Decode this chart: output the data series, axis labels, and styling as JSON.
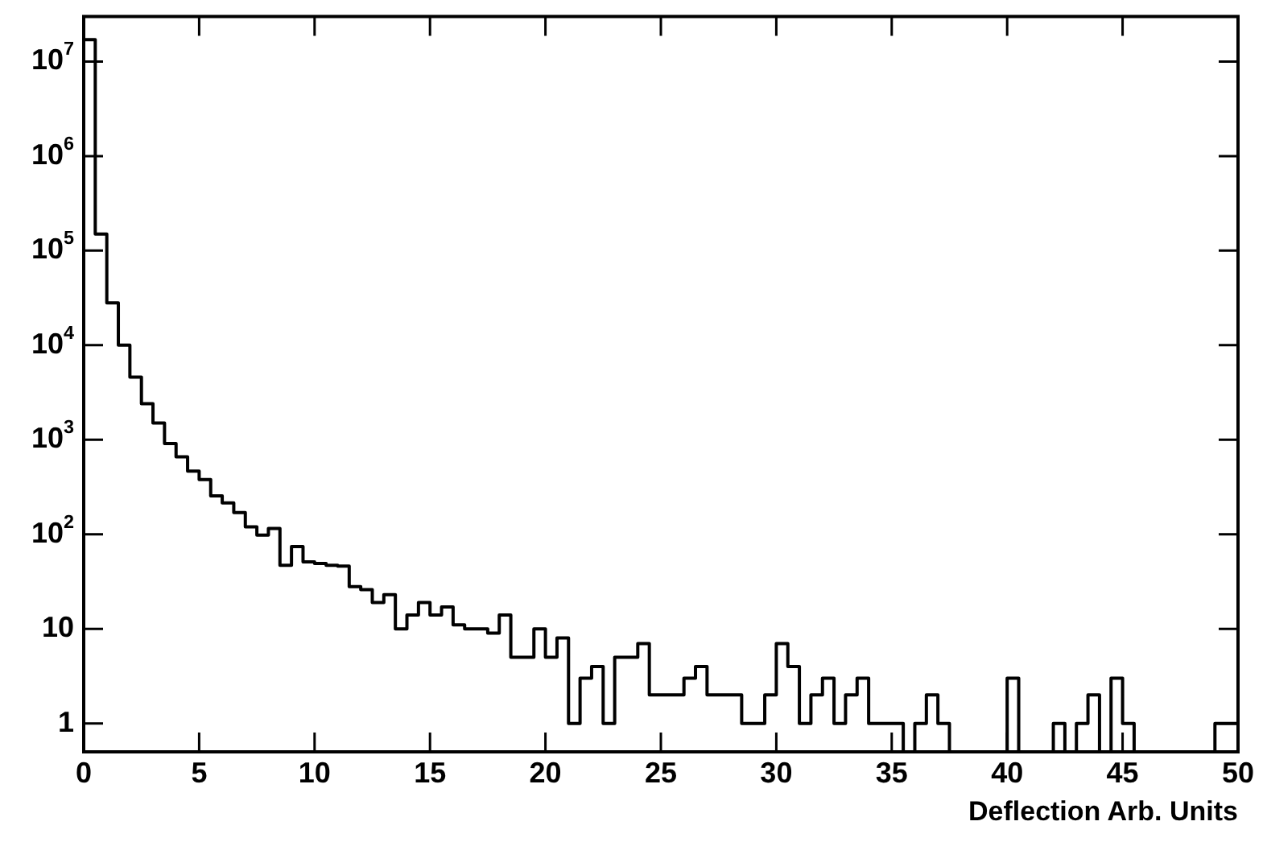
{
  "chart_data": {
    "type": "histogram",
    "xlabel": "Deflection Arb. Units",
    "bins": [
      0,
      0.5,
      1,
      1.5,
      2,
      2.5,
      3,
      3.5,
      4,
      4.5,
      5,
      5.5,
      6,
      6.5,
      7,
      7.5,
      8,
      8.5,
      9,
      9.5,
      10,
      10.5,
      11,
      11.5,
      12,
      12.5,
      13,
      13.5,
      14,
      14.5,
      15,
      15.5,
      16,
      16.5,
      17,
      17.5,
      18,
      18.5,
      19,
      19.5,
      20,
      20.5,
      21,
      21.5,
      22,
      22.5,
      23,
      23.5,
      24,
      24.5,
      25,
      25.5,
      26,
      26.5,
      27,
      27.5,
      28,
      28.5,
      29,
      29.5,
      30,
      30.5,
      31,
      31.5,
      32,
      32.5,
      33,
      33.5,
      34,
      34.5,
      35,
      35.5,
      36,
      36.5,
      37,
      37.5,
      38,
      38.5,
      39,
      39.5,
      40,
      40.5,
      41,
      41.5,
      42,
      42.5,
      43,
      43.5,
      44,
      44.5,
      45,
      45.5,
      46,
      46.5,
      47,
      47.5,
      48,
      48.5,
      49,
      49.5,
      50
    ],
    "values": [
      17000000,
      150000,
      28000,
      10000,
      4600,
      2400,
      1500,
      910,
      660,
      465,
      380,
      255,
      215,
      170,
      120,
      98,
      115,
      47,
      74,
      51,
      49,
      47,
      46,
      28,
      26,
      19,
      23,
      10,
      14,
      19,
      14,
      17,
      11,
      10,
      10,
      9,
      14,
      5,
      5,
      10,
      5,
      8,
      1,
      3,
      4,
      1,
      5,
      5,
      7,
      2,
      2,
      2,
      3,
      4,
      2,
      2,
      2,
      1,
      1,
      2,
      7,
      4,
      1,
      2,
      3,
      1,
      2,
      3,
      1,
      1,
      1,
      null,
      1,
      2,
      1,
      null,
      null,
      null,
      null,
      null,
      3,
      null,
      null,
      null,
      1,
      null,
      1,
      2,
      null,
      3,
      1,
      null,
      null,
      null,
      null,
      null,
      null,
      null,
      1,
      1
    ],
    "color": "#000000",
    "log": "y",
    "grid": false,
    "legend": false,
    "xlim": [
      0,
      50
    ],
    "xticks": [
      0,
      5,
      10,
      15,
      20,
      25,
      30,
      35,
      40,
      45,
      50
    ],
    "ylim": [
      0.5,
      30000000
    ],
    "yticks": [
      1,
      10,
      {
        "value": 100,
        "label": "10$^{2}$"
      },
      {
        "value": 1000,
        "label": "10$^{3}$"
      },
      {
        "value": 10000,
        "label": "10$^{4}$"
      },
      {
        "value": 100000,
        "label": "10$^{5}$"
      },
      {
        "value": 1000000,
        "label": "10$^{6}$"
      },
      {
        "value": 10000000,
        "label": "10$^{7}$"
      }
    ]
  }
}
